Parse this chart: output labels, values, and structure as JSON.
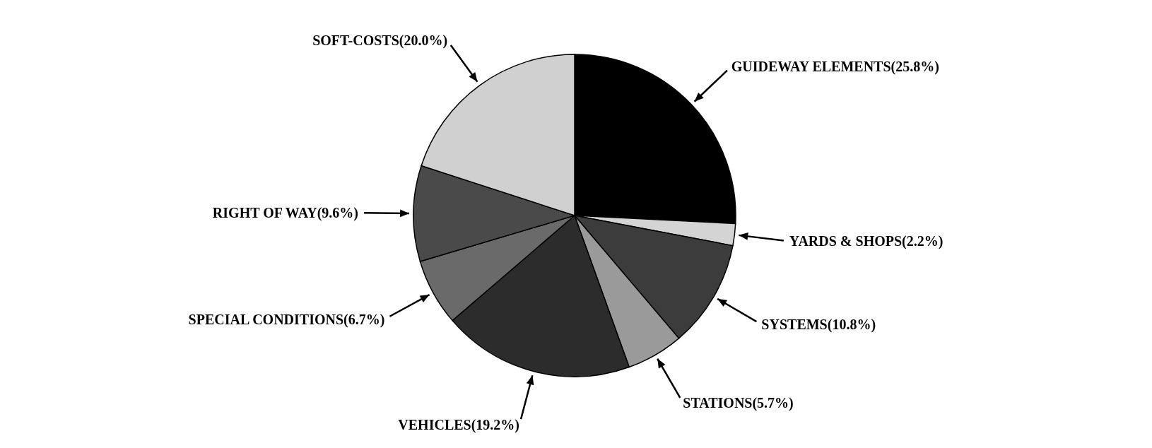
{
  "chart_data": {
    "type": "pie",
    "categories": [
      "GUIDEWAY ELEMENTS",
      "YARDS & SHOPS",
      "SYSTEMS",
      "STATIONS",
      "VEHICLES",
      "SPECIAL CONDITIONS",
      "RIGHT OF WAY",
      "SOFT-COSTS"
    ],
    "values": [
      25.8,
      2.2,
      10.8,
      5.7,
      19.2,
      6.7,
      9.6,
      20.0
    ],
    "value_labels": [
      "(25.8%)",
      "(2.2%)",
      "(10.8%)",
      "(5.7%)",
      "(19.2%)",
      "(6.7%)",
      "(9.6%)",
      "(20.0%)"
    ],
    "colors": [
      "#000000",
      "#d4d4d4",
      "#3c3c3c",
      "#9a9a9a",
      "#2c2c2c",
      "#6a6a6a",
      "#4a4a4a",
      "#d0d0d0"
    ],
    "legend": false
  }
}
